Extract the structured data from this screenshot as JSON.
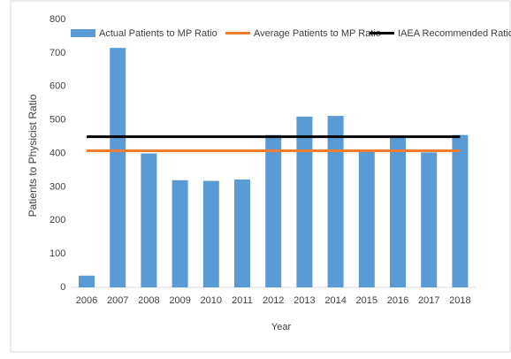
{
  "chart_data": {
    "type": "bar",
    "categories": [
      "2006",
      "2007",
      "2008",
      "2009",
      "2010",
      "2011",
      "2012",
      "2013",
      "2014",
      "2015",
      "2016",
      "2017",
      "2018"
    ],
    "series": [
      {
        "name": "Actual Patients to MP Ratio",
        "type": "bar",
        "color": "#5b9bd5",
        "values": [
          35,
          715,
          400,
          320,
          318,
          322,
          455,
          510,
          512,
          405,
          450,
          403,
          455
        ]
      },
      {
        "name": "Average Patients to MP Ratio",
        "type": "line",
        "color": "#ed7d31",
        "values": [
          408,
          408,
          408,
          408,
          408,
          408,
          408,
          408,
          408,
          408,
          408,
          408,
          408
        ]
      },
      {
        "name": "IAEA Recommended Ratio",
        "type": "line",
        "color": "#000000",
        "values": [
          450,
          450,
          450,
          450,
          450,
          450,
          450,
          450,
          450,
          450,
          450,
          450,
          450
        ]
      }
    ],
    "xlabel": "Year",
    "ylabel": "Patients to Physicist Ratio",
    "ylim": [
      0,
      800
    ],
    "yticks": [
      0,
      100,
      200,
      300,
      400,
      500,
      600,
      700,
      800
    ],
    "grid": false
  }
}
